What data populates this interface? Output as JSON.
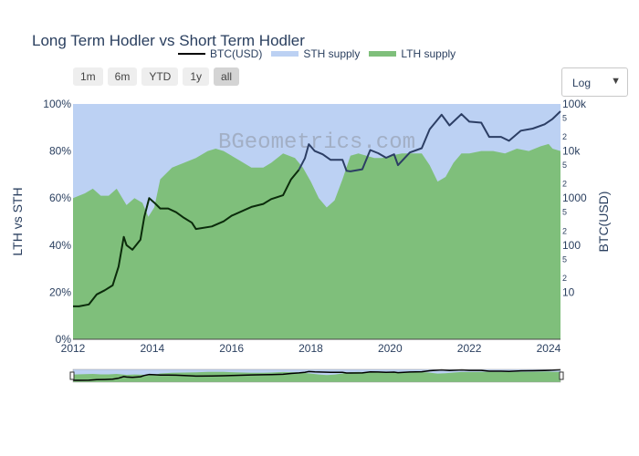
{
  "chart_data": {
    "type": "area",
    "title": "Long Term Hodler vs Short Term Hodler",
    "watermark": "BGeometrics.com",
    "xlabel": "",
    "ylabel": "LTH vs STH",
    "y2label": "BTC(USD)",
    "x_ticks": [
      "2012",
      "2014",
      "2016",
      "2018",
      "2020",
      "2022",
      "2024"
    ],
    "xlim": [
      2012,
      2024.3
    ],
    "y_ticks": [
      "0%",
      "20%",
      "40%",
      "60%",
      "80%",
      "100%"
    ],
    "ylim": [
      0,
      100
    ],
    "y2_scale": "log",
    "y2lim": [
      1,
      100000
    ],
    "y2_major_ticks": [
      "10",
      "100",
      "1000",
      "10k",
      "100k"
    ],
    "y2_minor_ticks": [
      "2",
      "5"
    ],
    "legend_position": "top",
    "series": [
      {
        "name": "BTC(USD)",
        "kind": "line",
        "axis": "right",
        "color": "#000000",
        "x": [
          2012.0,
          2012.15,
          2012.4,
          2012.6,
          2012.8,
          2013.0,
          2013.15,
          2013.28,
          2013.35,
          2013.5,
          2013.7,
          2013.8,
          2013.92,
          2014.05,
          2014.2,
          2014.4,
          2014.6,
          2014.8,
          2015.0,
          2015.1,
          2015.5,
          2015.8,
          2016.0,
          2016.5,
          2016.8,
          2017.0,
          2017.3,
          2017.5,
          2017.7,
          2017.85,
          2017.95,
          2018.1,
          2018.3,
          2018.5,
          2018.8,
          2018.9,
          2019.0,
          2019.3,
          2019.5,
          2019.7,
          2019.9,
          2020.1,
          2020.2,
          2020.5,
          2020.8,
          2021.0,
          2021.3,
          2021.5,
          2021.8,
          2022.0,
          2022.3,
          2022.5,
          2022.8,
          2023.0,
          2023.3,
          2023.6,
          2023.9,
          2024.1,
          2024.3
        ],
        "y": [
          5,
          5,
          5.5,
          9,
          11,
          14,
          35,
          150,
          100,
          80,
          130,
          400,
          1000,
          800,
          600,
          600,
          500,
          380,
          300,
          220,
          250,
          320,
          420,
          650,
          750,
          950,
          1150,
          2500,
          4000,
          7000,
          14000,
          10000,
          8500,
          6500,
          6500,
          3800,
          3700,
          4100,
          10500,
          9000,
          7200,
          8500,
          5000,
          9300,
          11500,
          29000,
          59000,
          35000,
          61000,
          42000,
          40000,
          20000,
          20000,
          16500,
          27000,
          30000,
          37000,
          48000,
          70000
        ]
      },
      {
        "name": "STH supply",
        "kind": "area",
        "axis": "left",
        "color": "#bcd1f3",
        "note": "fills remainder to 100%"
      },
      {
        "name": "LTH supply",
        "kind": "area",
        "axis": "left",
        "color": "#7fbf7b",
        "x": [
          2012.0,
          2012.3,
          2012.5,
          2012.7,
          2012.9,
          2013.1,
          2013.35,
          2013.55,
          2013.75,
          2013.9,
          2014.05,
          2014.2,
          2014.5,
          2014.8,
          2015.1,
          2015.4,
          2015.6,
          2015.8,
          2016.0,
          2016.2,
          2016.5,
          2016.8,
          2017.0,
          2017.3,
          2017.6,
          2017.8,
          2018.0,
          2018.2,
          2018.4,
          2018.6,
          2018.8,
          2019.0,
          2019.2,
          2019.4,
          2019.6,
          2019.8,
          2020.0,
          2020.3,
          2020.6,
          2020.8,
          2021.0,
          2021.2,
          2021.4,
          2021.6,
          2021.8,
          2022.0,
          2022.3,
          2022.6,
          2022.9,
          2023.2,
          2023.5,
          2023.8,
          2024.0,
          2024.1,
          2024.3
        ],
        "y": [
          60,
          62,
          64,
          61,
          61,
          64,
          57,
          60,
          58,
          52,
          56,
          68,
          73,
          75,
          77,
          80,
          81,
          80,
          78,
          76,
          73,
          73,
          75,
          79,
          77,
          73,
          67,
          60,
          56,
          59,
          68,
          78,
          79,
          78,
          77,
          77,
          78,
          79,
          79,
          79,
          74,
          67,
          69,
          75,
          79,
          79,
          80,
          80,
          79,
          81,
          80,
          82,
          83,
          81,
          80
        ]
      }
    ]
  },
  "controls": {
    "range_buttons": [
      "1m",
      "6m",
      "YTD",
      "1y",
      "all"
    ],
    "active_range": "all",
    "scale_select_value": "Log"
  }
}
